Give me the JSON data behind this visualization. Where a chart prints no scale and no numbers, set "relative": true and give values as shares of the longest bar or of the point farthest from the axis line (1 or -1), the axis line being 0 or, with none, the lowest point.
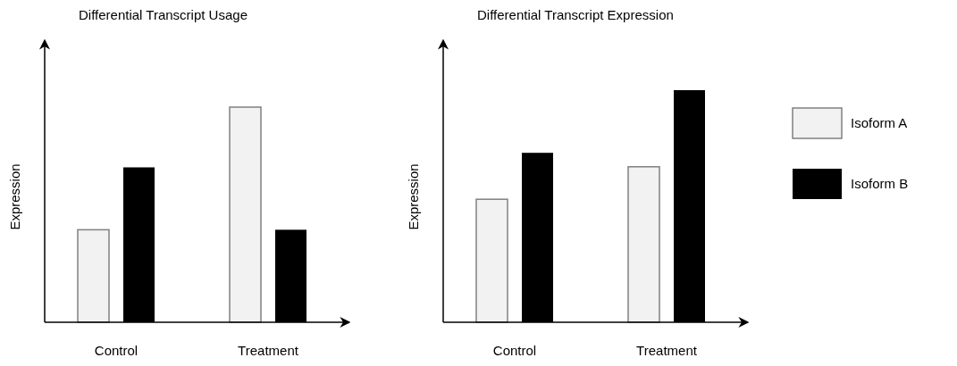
{
  "chart_data": [
    {
      "type": "bar",
      "title": "Differential Transcript Usage",
      "ylabel": "Expression",
      "categories": [
        "Control",
        "Treatment"
      ],
      "relative": true,
      "legend": false,
      "series": [
        {
          "color": "#f2f2f2",
          "values": [
            0.43,
            1
          ]
        },
        {
          "color": "#000000",
          "values": [
            0.72,
            0.43
          ]
        }
      ]
    },
    {
      "type": "bar",
      "title": "Differential Transcript Expression",
      "ylabel": "Expression",
      "categories": [
        "Control",
        "Treatment"
      ],
      "relative": true,
      "legend": "right",
      "series": [
        {
          "name": "Isoform A",
          "color": "#f2f2f2",
          "values": [
            0.53,
            0.67
          ]
        },
        {
          "name": "Isoform B",
          "color": "#000000",
          "values": [
            0.73,
            1
          ]
        }
      ]
    }
  ]
}
